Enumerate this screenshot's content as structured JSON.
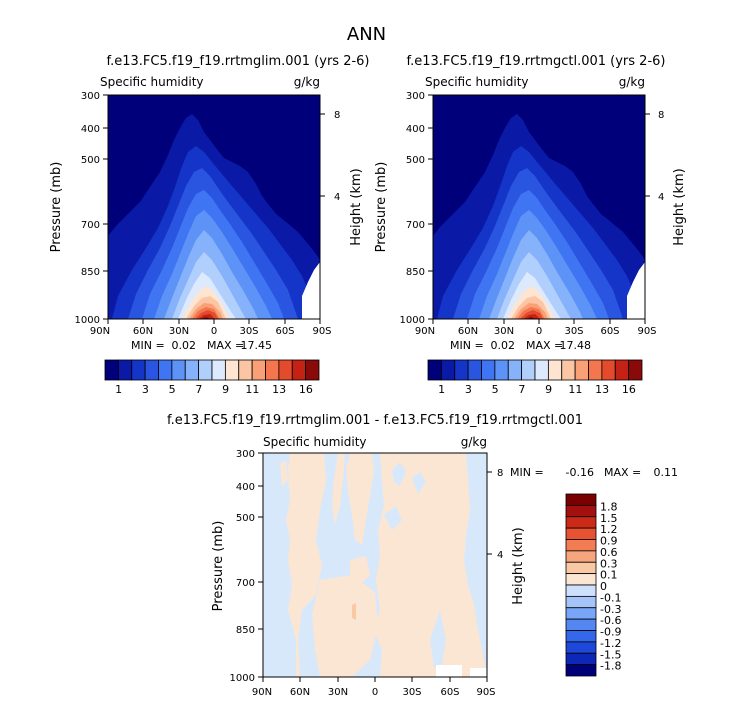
{
  "page_title": "ANN",
  "colors": {
    "top_palette": [
      "#00007a",
      "#0a1aa6",
      "#1535c8",
      "#2a55e0",
      "#3f74f2",
      "#5d93f7",
      "#85b2fa",
      "#b1cffc",
      "#ddeafd",
      "#fde5d2",
      "#fcc5a3",
      "#f9a077",
      "#f3764f",
      "#e44b2c",
      "#c42214",
      "#8a0a0a"
    ],
    "diff_palette": [
      "#00007a",
      "#0d28b8",
      "#1e48da",
      "#3567ea",
      "#5487f2",
      "#7aa6f7",
      "#a4c4fa",
      "#cde1fd",
      "#fbe6d4",
      "#f9c9a6",
      "#f6a67c",
      "#f27d55",
      "#e65232",
      "#cc2a17",
      "#a41010",
      "#7a0000"
    ]
  },
  "chart_data": [
    {
      "type": "heatmap",
      "name": "left",
      "title": "f.e13.FC5.f19_f19.rrtmglim.001 (yrs 2-6)",
      "left_string": "Specific humidity",
      "right_string": "g/kg",
      "ylabel": "Pressure (mb)",
      "ylabel_right": "Height (km)",
      "x_ticks": [
        "90N",
        "60N",
        "30N",
        "0",
        "30S",
        "60S",
        "90S"
      ],
      "y_ticks": [
        "300",
        "400",
        "500",
        "700",
        "850",
        "1000"
      ],
      "y_ticks_right": [
        "8",
        "4"
      ],
      "min_label": "MIN =",
      "min_value": "0.02",
      "max_label": "MAX =",
      "max_value": "17.45",
      "colorbar_labels": [
        "1",
        "3",
        "5",
        "7",
        "9",
        "11",
        "13",
        "16"
      ]
    },
    {
      "type": "heatmap",
      "name": "right",
      "title": "f.e13.FC5.f19_f19.rrtmgctl.001 (yrs 2-6)",
      "left_string": "Specific humidity",
      "right_string": "g/kg",
      "ylabel": "Pressure (mb)",
      "ylabel_right": "Height (km)",
      "x_ticks": [
        "90N",
        "60N",
        "30N",
        "0",
        "30S",
        "60S",
        "90S"
      ],
      "y_ticks": [
        "300",
        "400",
        "500",
        "700",
        "850",
        "1000"
      ],
      "y_ticks_right": [
        "8",
        "4"
      ],
      "min_label": "MIN =",
      "min_value": "0.02",
      "max_label": "MAX =",
      "max_value": "17.48",
      "colorbar_labels": [
        "1",
        "3",
        "5",
        "7",
        "9",
        "11",
        "13",
        "16"
      ]
    },
    {
      "type": "heatmap",
      "name": "difference",
      "title": "f.e13.FC5.f19_f19.rrtmglim.001 - f.e13.FC5.f19_f19.rrtmgctl.001",
      "left_string": "Specific humidity",
      "right_string": "g/kg",
      "ylabel": "Pressure (mb)",
      "ylabel_right": "Height (km)",
      "x_ticks": [
        "90N",
        "60N",
        "30N",
        "0",
        "30S",
        "60S",
        "90S"
      ],
      "y_ticks": [
        "300",
        "400",
        "500",
        "700",
        "850",
        "1000"
      ],
      "y_ticks_right": [
        "8",
        "4"
      ],
      "min_label": "MIN =",
      "min_value": "-0.16",
      "max_label": "MAX =",
      "max_value": "0.11",
      "colorbar_labels": [
        "1.8",
        "1.5",
        "1.2",
        "0.9",
        "0.6",
        "0.3",
        "0.1",
        "0",
        "-0.1",
        "-0.3",
        "-0.6",
        "-0.9",
        "-1.2",
        "-1.5",
        "-1.8"
      ]
    }
  ]
}
